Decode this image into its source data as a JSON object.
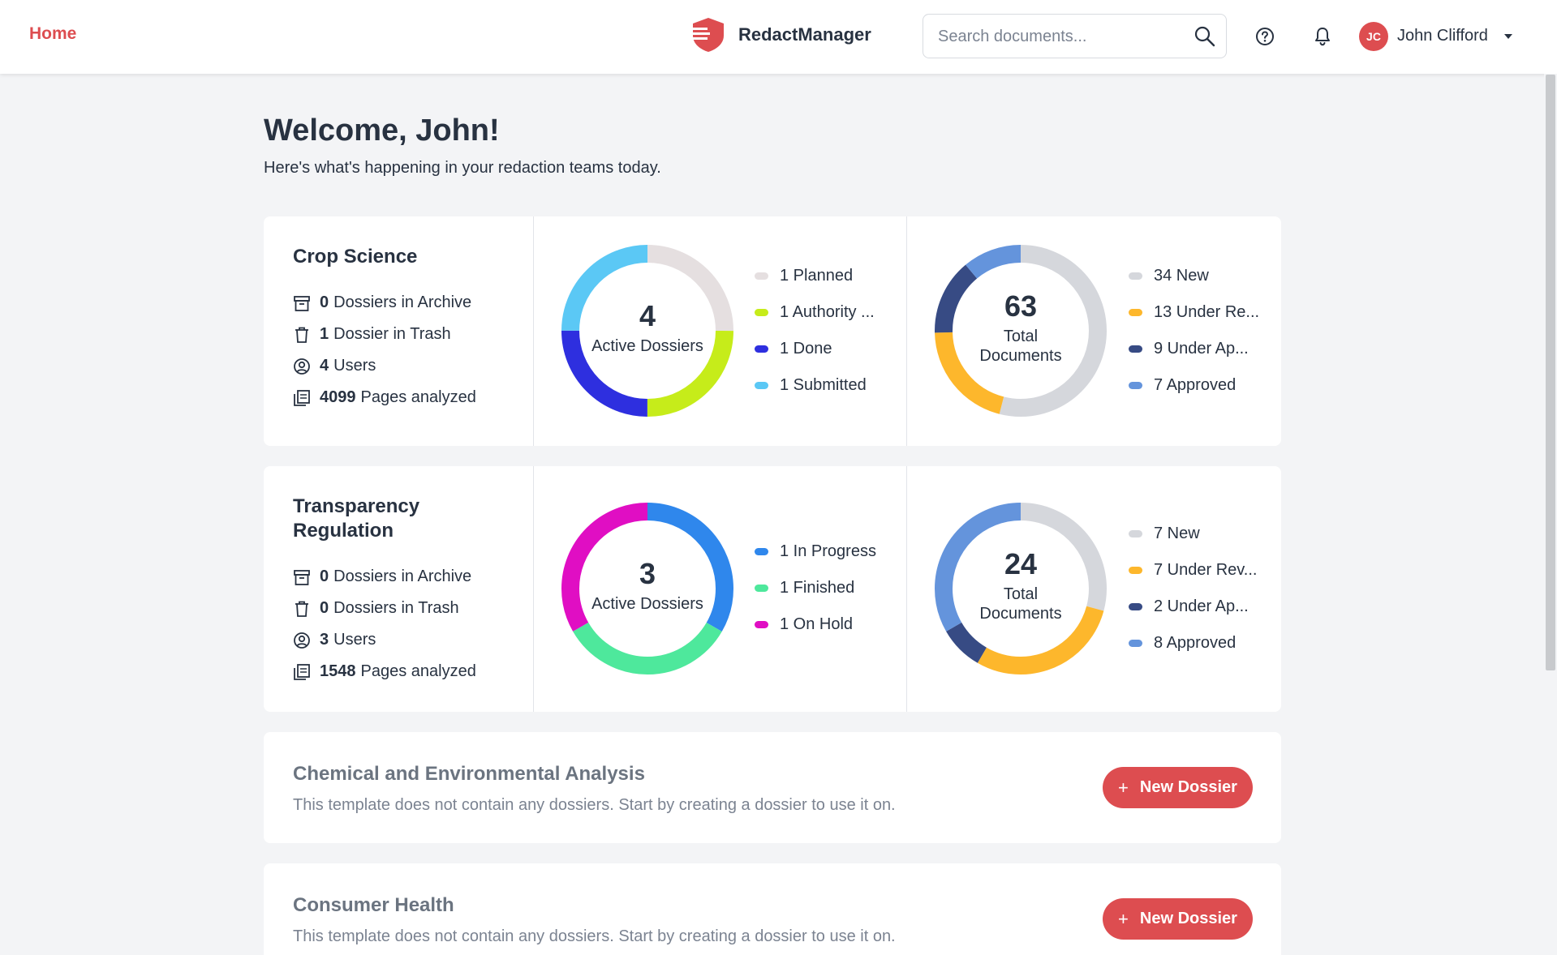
{
  "nav": {
    "home_label": "Home"
  },
  "brand": {
    "name": "RedactManager",
    "color": "#dd4d50"
  },
  "search": {
    "placeholder": "Search documents..."
  },
  "user": {
    "initials": "JC",
    "name": "John Clifford"
  },
  "welcome": {
    "title": "Welcome, John!",
    "subtitle": "Here's what's happening in your redaction teams today."
  },
  "teams": [
    {
      "title": "Crop Science",
      "stats": [
        {
          "count": "0",
          "label": "Dossiers in Archive"
        },
        {
          "count": "1",
          "label": "Dossier in Trash"
        },
        {
          "count": "4",
          "label": "Users"
        },
        {
          "count": "4099",
          "label": "Pages analyzed"
        }
      ],
      "dossiers": {
        "total": "4",
        "label": "Active Dossiers",
        "legend": [
          {
            "label": "1 Planned",
            "value": 1,
            "color": "#e5dfe0"
          },
          {
            "label": "1 Authority ...",
            "value": 1,
            "color": "#c6ec1a"
          },
          {
            "label": "1 Done",
            "value": 1,
            "color": "#2e2fdf"
          },
          {
            "label": "1 Submitted",
            "value": 1,
            "color": "#5bc8f5"
          }
        ]
      },
      "documents": {
        "total": "63",
        "label_line1": "Total",
        "label_line2": "Documents",
        "legend": [
          {
            "label": "34 New",
            "value": 34,
            "color": "#d5d7dc"
          },
          {
            "label": "13 Under Re...",
            "value": 13,
            "color": "#fdb72c"
          },
          {
            "label": "9 Under Ap...",
            "value": 9,
            "color": "#374b84"
          },
          {
            "label": "7 Approved",
            "value": 7,
            "color": "#6494dc"
          }
        ]
      }
    },
    {
      "title_line1": "Transparency",
      "title_line2": "Regulation",
      "stats": [
        {
          "count": "0",
          "label": "Dossiers in Archive"
        },
        {
          "count": "0",
          "label": "Dossiers in Trash"
        },
        {
          "count": "3",
          "label": "Users"
        },
        {
          "count": "1548",
          "label": "Pages analyzed"
        }
      ],
      "dossiers": {
        "total": "3",
        "label": "Active Dossiers",
        "legend": [
          {
            "label": "1 In Progress",
            "value": 1,
            "color": "#2f87ec"
          },
          {
            "label": "1 Finished",
            "value": 1,
            "color": "#4ee89c"
          },
          {
            "label": "1 On Hold",
            "value": 1,
            "color": "#e00ec3"
          }
        ]
      },
      "documents": {
        "total": "24",
        "label_line1": "Total",
        "label_line2": "Documents",
        "legend": [
          {
            "label": "7 New",
            "value": 7,
            "color": "#d5d7dc"
          },
          {
            "label": "7 Under Rev...",
            "value": 7,
            "color": "#fdb72c"
          },
          {
            "label": "2 Under Ap...",
            "value": 2,
            "color": "#374b84"
          },
          {
            "label": "8 Approved",
            "value": 8,
            "color": "#6494dc"
          }
        ]
      }
    }
  ],
  "templates": [
    {
      "title": "Chemical and Environmental Analysis",
      "description": "This template does not contain any dossiers. Start by creating a dossier to use it on.",
      "button_label": "New Dossier",
      "button_icon": "+"
    },
    {
      "title": "Consumer Health",
      "description": "This template does not contain any dossiers. Start by creating a dossier to use it on.",
      "button_label": "New Dossier",
      "button_icon": "+"
    }
  ]
}
